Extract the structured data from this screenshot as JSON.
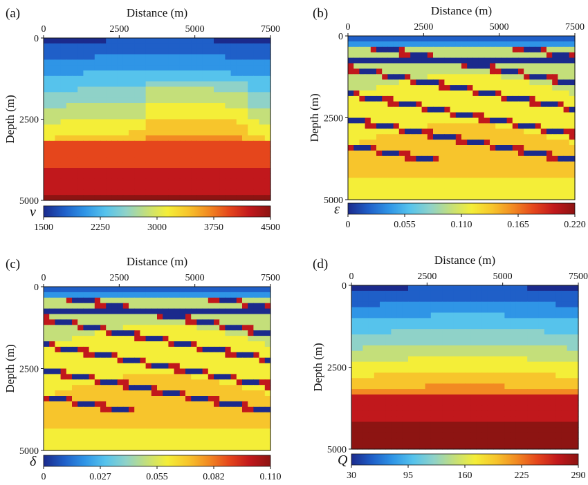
{
  "palette": [
    "#1b2a8c",
    "#1f5fc8",
    "#2f95e6",
    "#56c3ec",
    "#8fd2c8",
    "#c4df7a",
    "#f4ee38",
    "#f7c52c",
    "#f28a22",
    "#e5461c",
    "#c1181c",
    "#8d1412"
  ],
  "chart_data": [
    {
      "type": "heatmap",
      "panel_label": "(a)",
      "xlabel": "Distance (m)",
      "ylabel": "Depth (m)",
      "x_ticks": [
        "0",
        "2500",
        "5000",
        "7500"
      ],
      "y_ticks": [
        "0",
        "2500",
        "5000"
      ],
      "xlim": [
        0,
        7500
      ],
      "ylim": [
        0,
        5000
      ],
      "colorbar": {
        "symbol": "v",
        "ticks": [
          "1500",
          "2250",
          "3000",
          "3750",
          "4500"
        ],
        "range": [
          1500,
          4500
        ]
      }
    },
    {
      "type": "heatmap",
      "panel_label": "(b)",
      "xlabel": "Distance (m)",
      "ylabel": "Depth (m)",
      "x_ticks": [
        "0",
        "2500",
        "5000",
        "7500"
      ],
      "y_ticks": [
        "0",
        "2500",
        "5000"
      ],
      "xlim": [
        0,
        7500
      ],
      "ylim": [
        0,
        5000
      ],
      "colorbar": {
        "symbol": "ε",
        "ticks": [
          "0",
          "0.055",
          "0.110",
          "0.165",
          "0.220"
        ],
        "range": [
          0,
          0.22
        ]
      }
    },
    {
      "type": "heatmap",
      "panel_label": "(c)",
      "xlabel": "Distance (m)",
      "ylabel": "Depth (m)",
      "x_ticks": [
        "0",
        "2500",
        "5000",
        "7500"
      ],
      "y_ticks": [
        "0",
        "2500",
        "5000"
      ],
      "xlim": [
        0,
        7500
      ],
      "ylim": [
        0,
        5000
      ],
      "colorbar": {
        "symbol": "δ",
        "ticks": [
          "0",
          "0.027",
          "0.055",
          "0.082",
          "0.110"
        ],
        "range": [
          0,
          0.11
        ]
      }
    },
    {
      "type": "heatmap",
      "panel_label": "(d)",
      "xlabel": "Distance (m)",
      "ylabel": "Depth (m)",
      "x_ticks": [
        "0",
        "2500",
        "5000",
        "7500"
      ],
      "y_ticks": [
        "0",
        "2500",
        "5000"
      ],
      "xlim": [
        0,
        7500
      ],
      "ylim": [
        0,
        5000
      ],
      "colorbar": {
        "symbol": "Q",
        "ticks": [
          "30",
          "95",
          "160",
          "225",
          "290"
        ],
        "range": [
          30,
          290
        ]
      }
    }
  ]
}
